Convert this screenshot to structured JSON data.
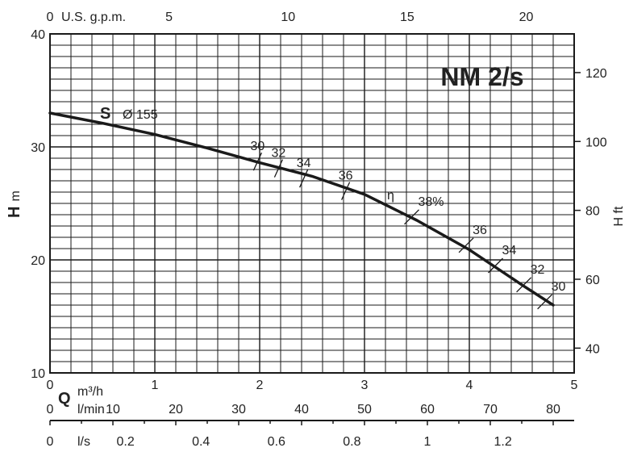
{
  "chart_data": {
    "type": "line",
    "title": "NM 2/s",
    "impeller_label": "S",
    "impeller_diameter": "Ø 155",
    "efficiency_symbol": "η",
    "colors": {
      "curve": "#1a1a1a",
      "grid": "#1a1a1a",
      "background": "#ffffff"
    },
    "grid": true,
    "x_axis": {
      "symbol": "Q",
      "unit": "m³/h",
      "range": [
        0,
        5
      ],
      "ticks": [
        "0",
        "1",
        "2",
        "3",
        "4",
        "5"
      ]
    },
    "y_axis_left": {
      "symbol": "H",
      "unit": "m",
      "range": [
        10,
        40
      ],
      "ticks": [
        "10",
        "20",
        "30",
        "40"
      ]
    },
    "y_axis_right": {
      "label": "H ft",
      "ticks": [
        "40",
        "60",
        "80",
        "100",
        "120"
      ]
    },
    "top_axis": {
      "label": "U.S. g.p.m.",
      "ticks": [
        "0",
        "5",
        "10",
        "15",
        "20"
      ]
    },
    "lmin_axis": {
      "unit": "l/min",
      "ticks": [
        "0",
        "10",
        "20",
        "30",
        "40",
        "50",
        "60",
        "70",
        "80"
      ]
    },
    "ls_axis": {
      "unit": "l/s",
      "ticks": [
        "0",
        "0.2",
        "0.4",
        "0.6",
        "0.8",
        "1",
        "1.2"
      ]
    },
    "series": [
      {
        "x": [
          0,
          0.5,
          1,
          1.5,
          2,
          2.5,
          3,
          3.5,
          4,
          4.5,
          4.8
        ],
        "y": [
          33.0,
          32.1,
          31.1,
          29.9,
          28.6,
          27.4,
          25.8,
          23.5,
          20.9,
          17.8,
          16.0
        ]
      }
    ],
    "efficiency_marks": [
      {
        "label": "30",
        "x": 1.98,
        "y": 28.7
      },
      {
        "label": "32",
        "x": 2.18,
        "y": 28.1
      },
      {
        "label": "34",
        "x": 2.42,
        "y": 27.2
      },
      {
        "label": "36",
        "x": 2.82,
        "y": 26.1
      },
      {
        "label": "38%",
        "x": 3.45,
        "y": 23.8
      },
      {
        "label": "36",
        "x": 3.97,
        "y": 21.3
      },
      {
        "label": "34",
        "x": 4.25,
        "y": 19.5
      },
      {
        "label": "32",
        "x": 4.52,
        "y": 17.8
      },
      {
        "label": "30",
        "x": 4.72,
        "y": 16.3
      }
    ]
  }
}
